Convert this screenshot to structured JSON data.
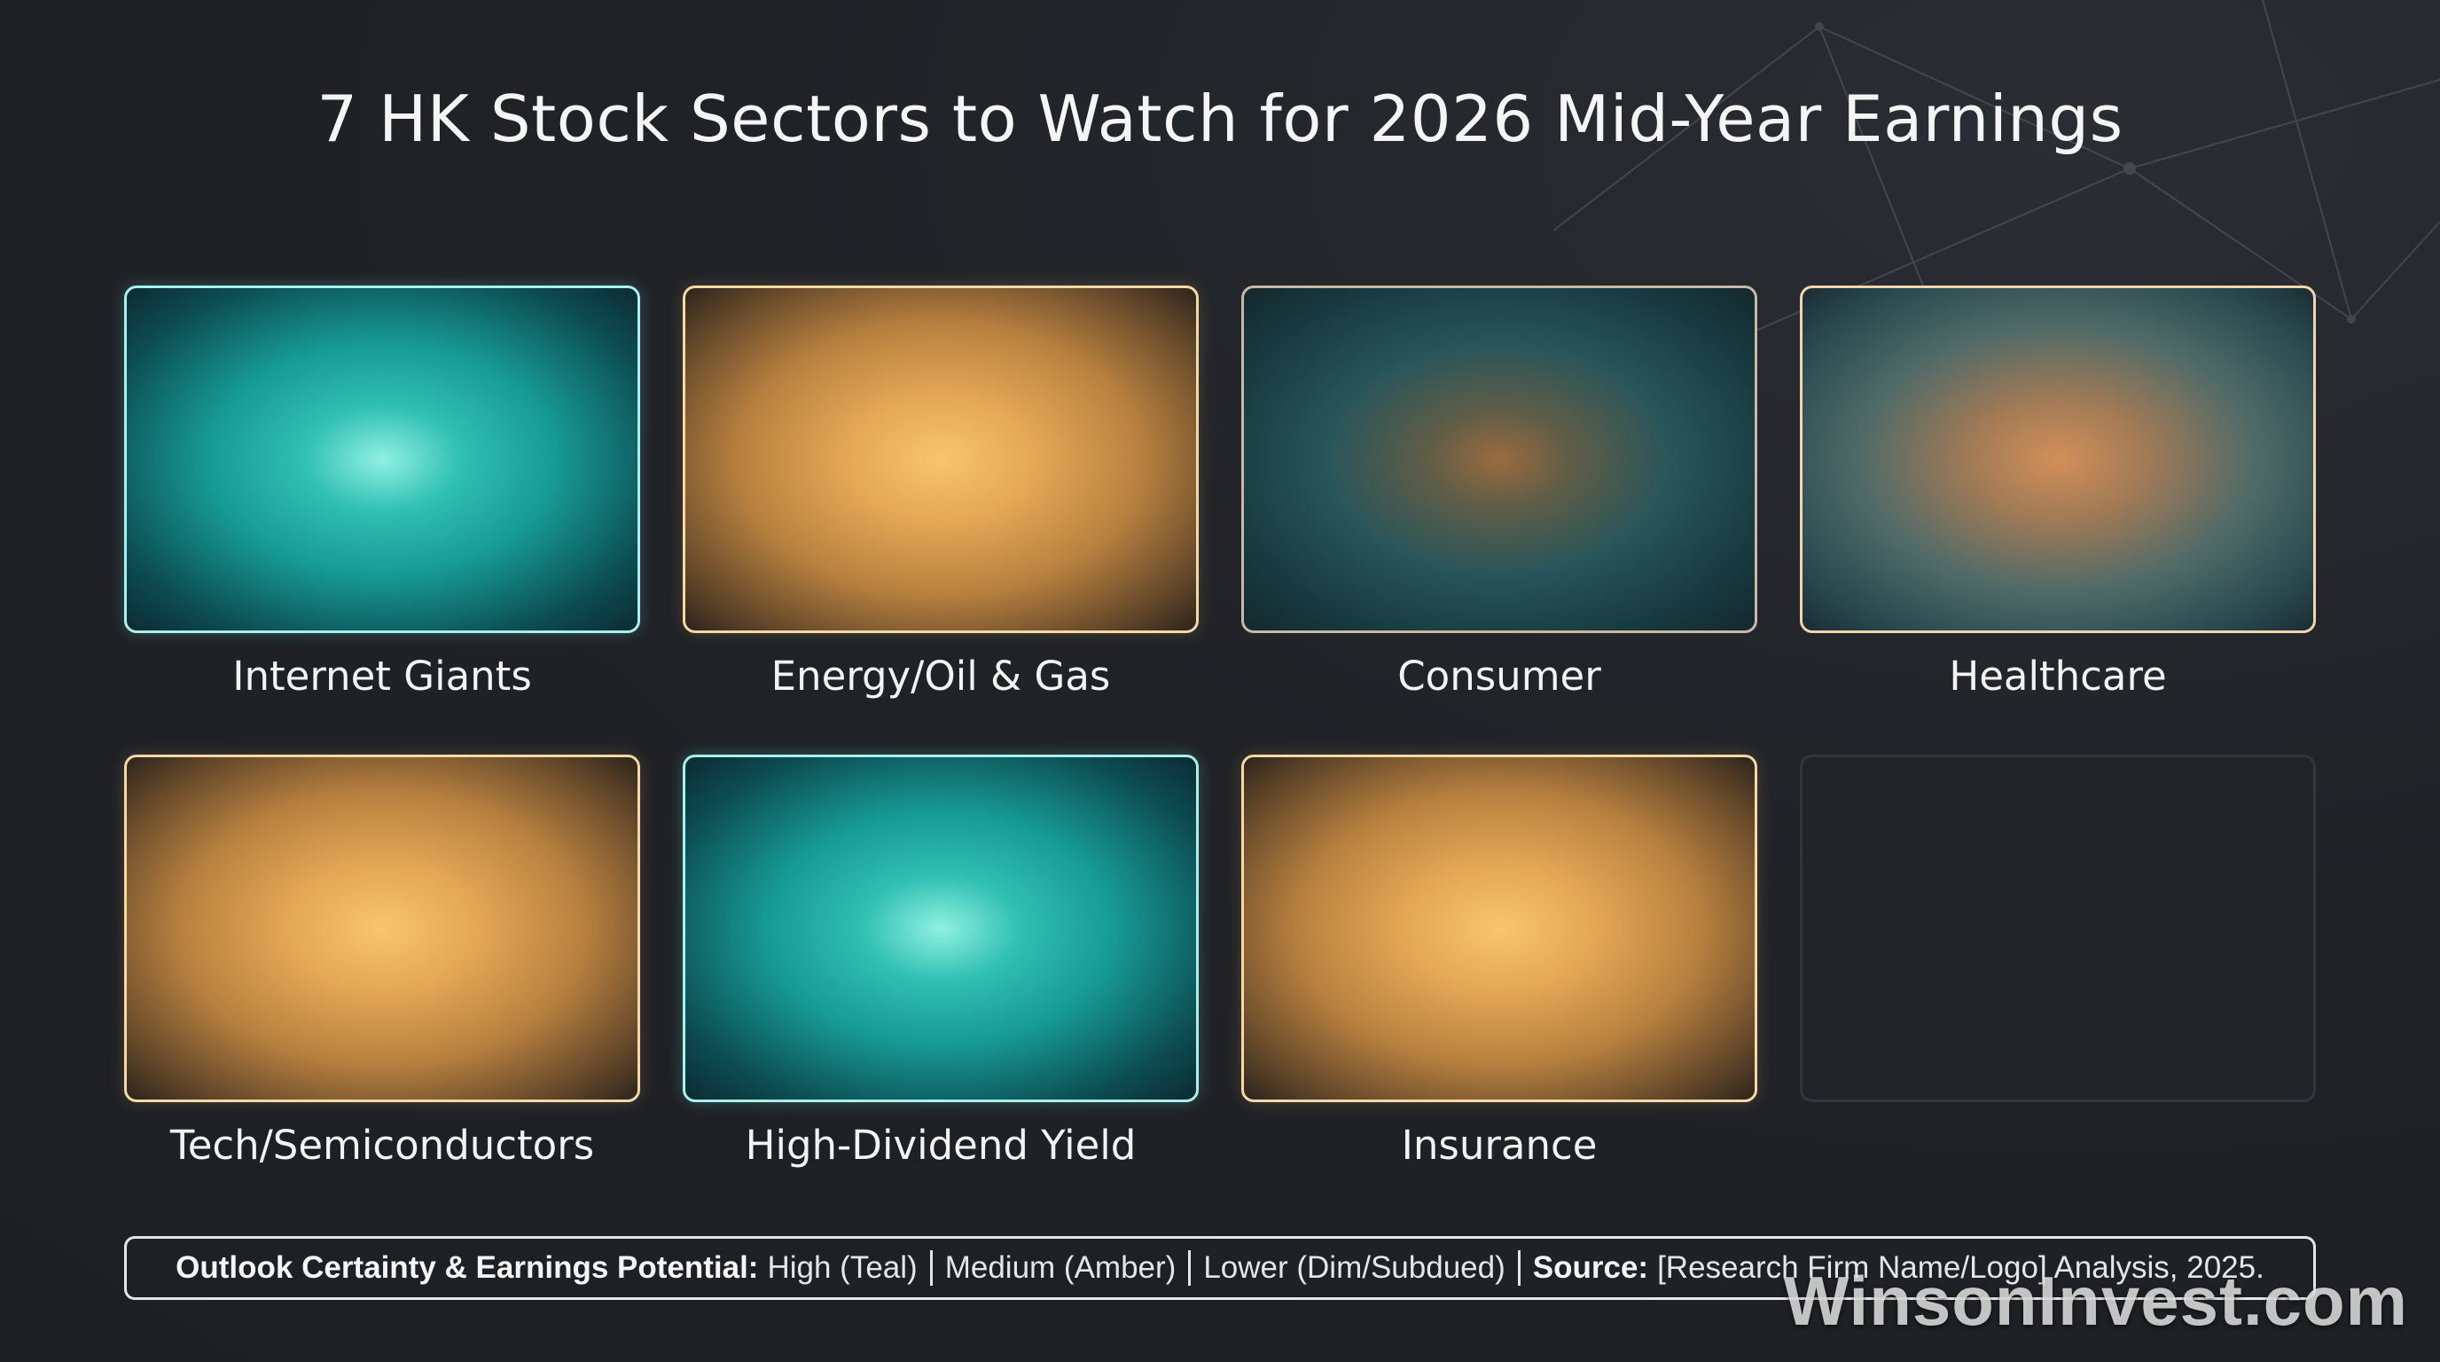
{
  "title": "7 HK Stock Sectors to Watch for 2026 Mid-Year Earnings",
  "colors": {
    "high": "#2fbfb3",
    "medium": "#e2a554",
    "lower": "#28555a",
    "background": "#1f2125"
  },
  "sectors": [
    {
      "label": "Internet Giants",
      "outlook": "High"
    },
    {
      "label": "Energy/Oil & Gas",
      "outlook": "Medium"
    },
    {
      "label": "Consumer",
      "outlook": "Lower"
    },
    {
      "label": "Healthcare",
      "outlook": "Lower"
    },
    {
      "label": "Tech/Semiconductors",
      "outlook": "Medium"
    },
    {
      "label": "High-Dividend Yield",
      "outlook": "High"
    },
    {
      "label": "Insurance",
      "outlook": "Medium"
    }
  ],
  "legend": {
    "heading": "Outlook Certainty & Earnings Potential:",
    "high": "High (Teal)",
    "medium": "Medium (Amber)",
    "lower": "Lower (Dim/Subdued)",
    "source_label": "Source:",
    "source_text": "[Research Firm Name/Logo] Analysis, 2025."
  },
  "watermark": "WinsonInvest.com"
}
